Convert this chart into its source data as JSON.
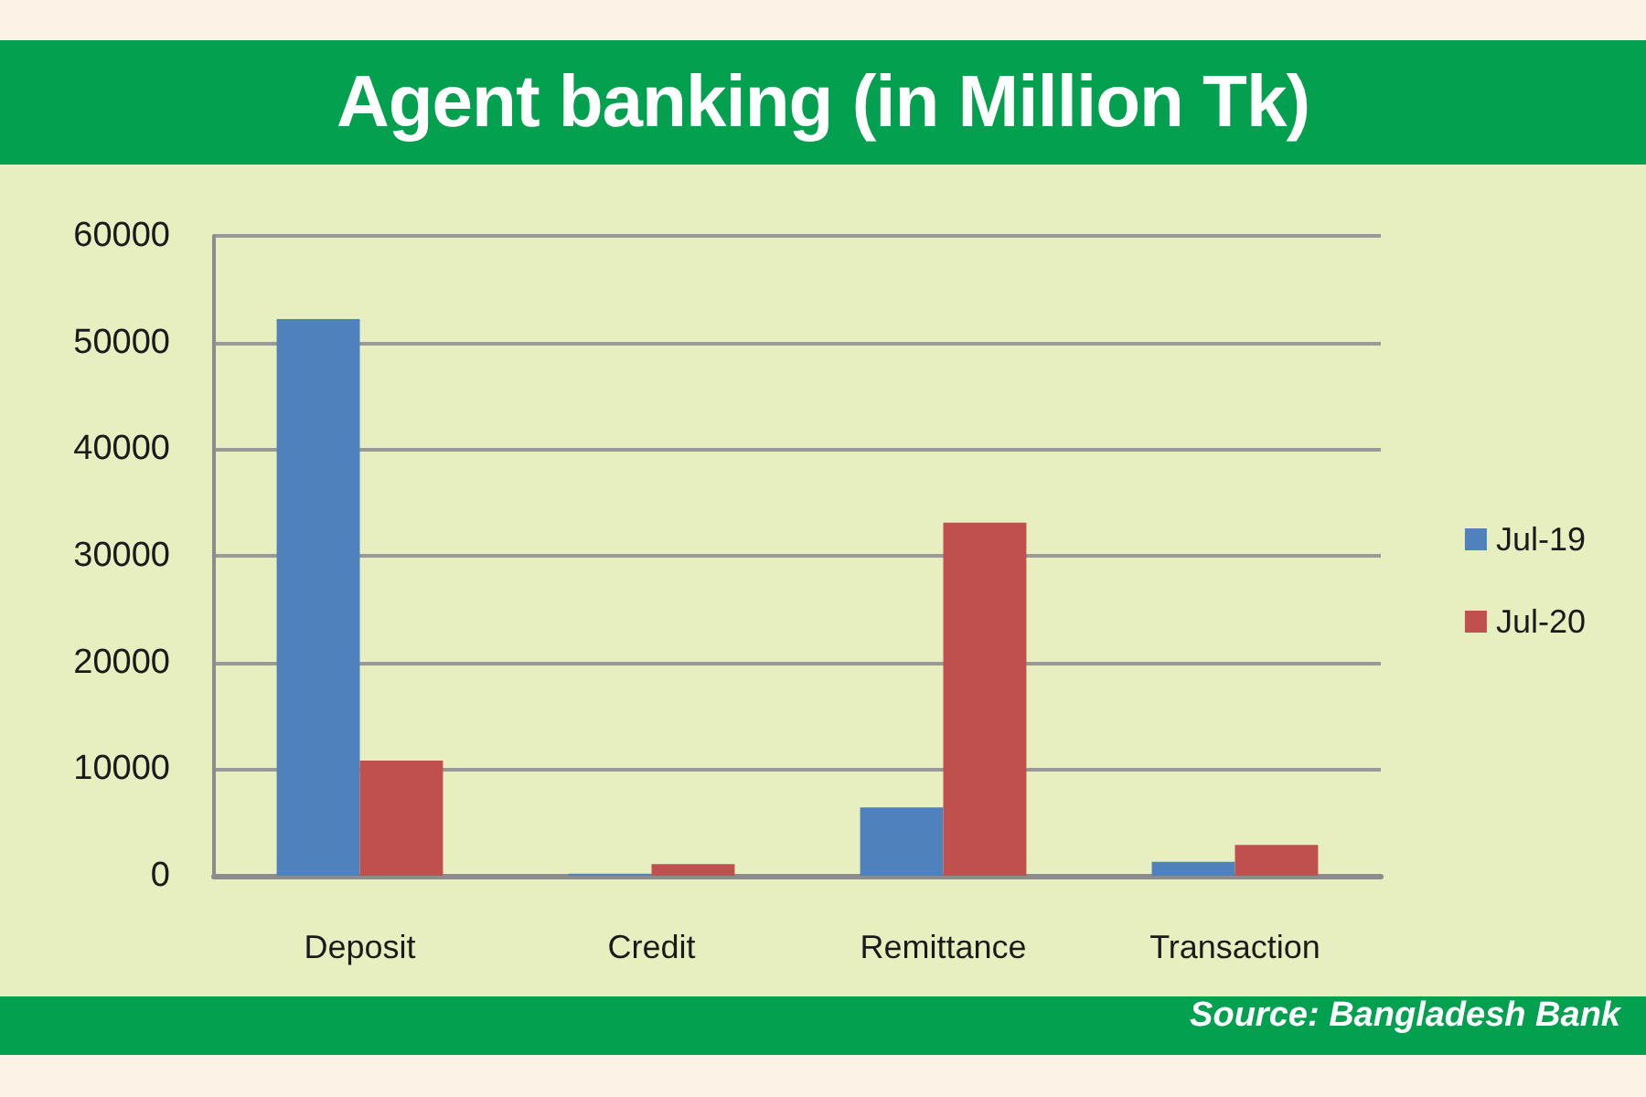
{
  "chart_data": {
    "type": "bar",
    "title": "Agent banking (in Million Tk)",
    "annotations": [
      "Source: Bangladesh Bank"
    ],
    "categories": [
      "Deposit",
      "Credit",
      "Remittance",
      "Transaction"
    ],
    "series": [
      {
        "name": "Jul-19",
        "color": "#4f81bd",
        "values": [
          52200,
          200,
          6400,
          1300
        ]
      },
      {
        "name": "Jul-20",
        "color": "#c0504d",
        "values": [
          10800,
          1100,
          33100,
          2900
        ]
      }
    ],
    "ylim": [
      0,
      60000
    ],
    "yticks": [
      0,
      10000,
      20000,
      30000,
      40000,
      50000,
      60000
    ],
    "grid": "y",
    "legend": "right"
  }
}
